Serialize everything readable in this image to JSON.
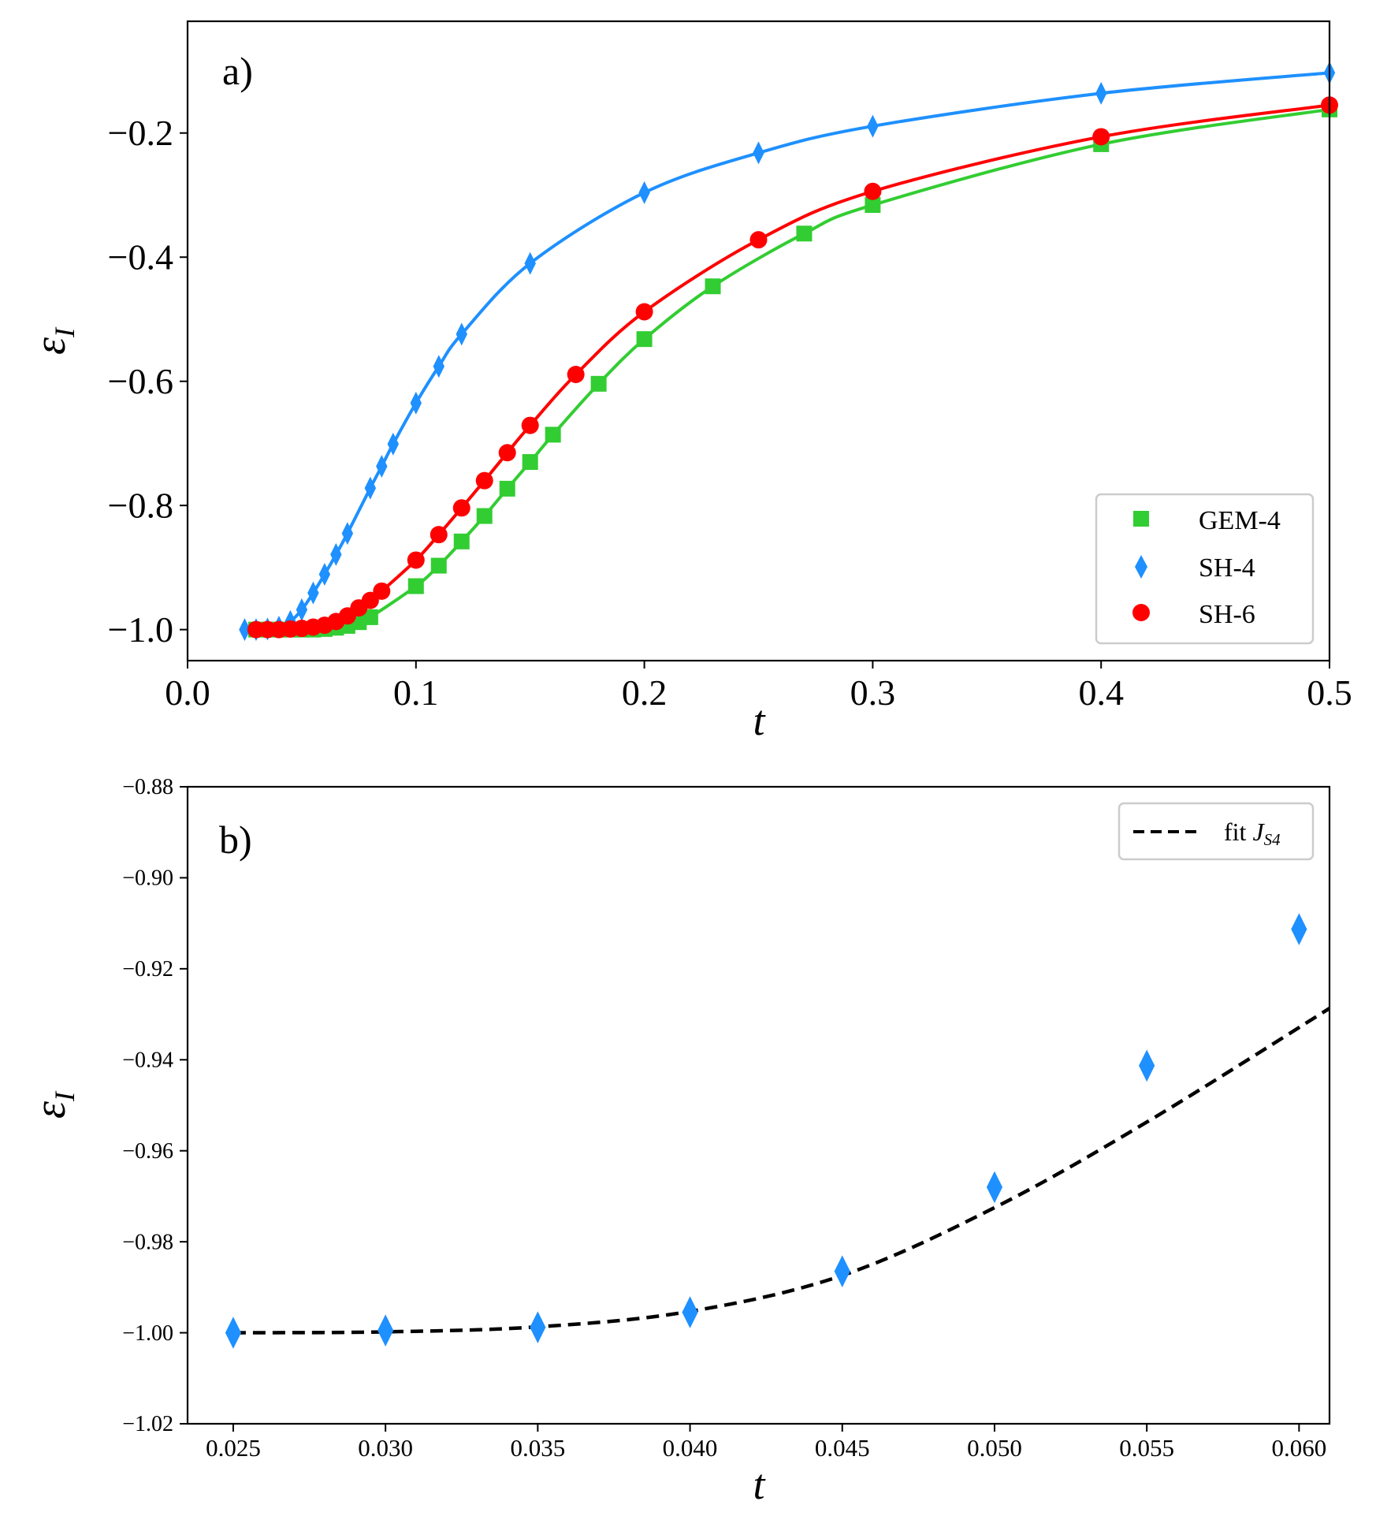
{
  "chart_data": [
    {
      "panel": "a)",
      "type": "line",
      "xlabel": "t",
      "ylabel": "ε_I",
      "xlim": [
        0.0,
        0.5
      ],
      "ylim": [
        -1.05,
        -0.02
      ],
      "xticks": [
        0.0,
        0.1,
        0.2,
        0.3,
        0.4,
        0.5
      ],
      "xtick_labels": [
        "0.0",
        "0.1",
        "0.2",
        "0.3",
        "0.4",
        "0.5"
      ],
      "yticks": [
        -1.0,
        -0.8,
        -0.6,
        -0.4,
        -0.2
      ],
      "ytick_labels": [
        "−1.0",
        "−0.8",
        "−0.6",
        "−0.4",
        "−0.2"
      ],
      "grid": false,
      "legend_position": "lower-right",
      "series": [
        {
          "name": "GEM-4",
          "color": "#32cd32",
          "marker": "square",
          "points": [
            [
              0.03,
              -1.0
            ],
            [
              0.035,
              -1.0
            ],
            [
              0.04,
              -1.0
            ],
            [
              0.045,
              -1.0
            ],
            [
              0.05,
              -1.0
            ],
            [
              0.055,
              -1.0
            ],
            [
              0.06,
              -0.999
            ],
            [
              0.065,
              -0.997
            ],
            [
              0.07,
              -0.994
            ],
            [
              0.075,
              -0.988
            ],
            [
              0.08,
              -0.98
            ],
            [
              0.1,
              -0.93
            ],
            [
              0.11,
              -0.897
            ],
            [
              0.12,
              -0.858
            ],
            [
              0.13,
              -0.817
            ],
            [
              0.14,
              -0.773
            ],
            [
              0.15,
              -0.73
            ],
            [
              0.16,
              -0.686
            ],
            [
              0.18,
              -0.604
            ],
            [
              0.2,
              -0.532
            ],
            [
              0.23,
              -0.447
            ],
            [
              0.27,
              -0.362
            ],
            [
              0.3,
              -0.316
            ],
            [
              0.4,
              -0.218
            ],
            [
              0.5,
              -0.162
            ]
          ]
        },
        {
          "name": "SH-4",
          "color": "#1e90ff",
          "marker": "thin_diamond",
          "points": [
            [
              0.025,
              -1.0
            ],
            [
              0.03,
              -1.0
            ],
            [
              0.035,
              -0.999
            ],
            [
              0.04,
              -0.996
            ],
            [
              0.045,
              -0.987
            ],
            [
              0.05,
              -0.968
            ],
            [
              0.055,
              -0.941
            ],
            [
              0.06,
              -0.911
            ],
            [
              0.065,
              -0.879
            ],
            [
              0.07,
              -0.845
            ],
            [
              0.08,
              -0.772
            ],
            [
              0.085,
              -0.737
            ],
            [
              0.09,
              -0.701
            ],
            [
              0.1,
              -0.635
            ],
            [
              0.11,
              -0.576
            ],
            [
              0.12,
              -0.524
            ],
            [
              0.15,
              -0.41
            ],
            [
              0.2,
              -0.296
            ],
            [
              0.25,
              -0.232
            ],
            [
              0.3,
              -0.189
            ],
            [
              0.4,
              -0.136
            ],
            [
              0.5,
              -0.103
            ]
          ]
        },
        {
          "name": "SH-6",
          "color": "#ff0000",
          "marker": "circle",
          "points": [
            [
              0.03,
              -1.0
            ],
            [
              0.035,
              -1.0
            ],
            [
              0.04,
              -1.0
            ],
            [
              0.045,
              -0.999
            ],
            [
              0.05,
              -0.998
            ],
            [
              0.055,
              -0.996
            ],
            [
              0.06,
              -0.993
            ],
            [
              0.065,
              -0.987
            ],
            [
              0.07,
              -0.978
            ],
            [
              0.075,
              -0.965
            ],
            [
              0.08,
              -0.953
            ],
            [
              0.085,
              -0.938
            ],
            [
              0.1,
              -0.888
            ],
            [
              0.11,
              -0.847
            ],
            [
              0.12,
              -0.804
            ],
            [
              0.13,
              -0.76
            ],
            [
              0.14,
              -0.715
            ],
            [
              0.15,
              -0.671
            ],
            [
              0.17,
              -0.589
            ],
            [
              0.2,
              -0.488
            ],
            [
              0.25,
              -0.372
            ],
            [
              0.3,
              -0.294
            ],
            [
              0.4,
              -0.206
            ],
            [
              0.5,
              -0.155
            ]
          ]
        }
      ]
    },
    {
      "panel": "b)",
      "type": "scatter",
      "xlabel": "t",
      "ylabel": "ε_I",
      "xlim": [
        0.0235,
        0.061
      ],
      "ylim": [
        -1.02,
        -0.88
      ],
      "xticks": [
        0.025,
        0.03,
        0.035,
        0.04,
        0.045,
        0.05,
        0.055,
        0.06
      ],
      "xtick_labels": [
        "0.025",
        "0.030",
        "0.035",
        "0.040",
        "0.045",
        "0.050",
        "0.055",
        "0.060"
      ],
      "yticks": [
        -1.02,
        -1.0,
        -0.98,
        -0.96,
        -0.94,
        -0.92,
        -0.9,
        -0.88
      ],
      "ytick_labels": [
        "−1.02",
        "−1.00",
        "−0.98",
        "−0.96",
        "−0.94",
        "−0.92",
        "−0.90",
        "−0.88"
      ],
      "grid": false,
      "legend_position": "top-right",
      "series": [
        {
          "name": "SH-4",
          "color": "#1e90ff",
          "marker": "thin_diamond",
          "points": [
            [
              0.025,
              -1.0
            ],
            [
              0.03,
              -0.9995
            ],
            [
              0.035,
              -0.9988
            ],
            [
              0.04,
              -0.9955
            ],
            [
              0.045,
              -0.9865
            ],
            [
              0.05,
              -0.968
            ],
            [
              0.055,
              -0.9413
            ],
            [
              0.06,
              -0.9113
            ]
          ]
        },
        {
          "name": "fit J_S4",
          "color": "#000000",
          "style": "dashed",
          "points": [
            [
              0.025,
              -1.0
            ],
            [
              0.03,
              -0.9998
            ],
            [
              0.035,
              -0.9987
            ],
            [
              0.04,
              -0.9953
            ],
            [
              0.045,
              -0.9874
            ],
            [
              0.05,
              -0.9725
            ],
            [
              0.055,
              -0.9537
            ],
            [
              0.061,
              -0.9287
            ]
          ]
        }
      ]
    }
  ],
  "legend_a": [
    {
      "label": "GEM-4",
      "marker": "square",
      "color": "#32cd32"
    },
    {
      "label": "SH-4",
      "marker": "thin_diamond",
      "color": "#1e90ff"
    },
    {
      "label": "SH-6",
      "marker": "circle",
      "color": "#ff0000"
    }
  ],
  "legend_b": {
    "label_prefix": "fit ",
    "label_italic": "J",
    "label_sub": "S4"
  },
  "axis_labels": {
    "ylabel_symbol": "ε",
    "ylabel_sub": "I",
    "xlabel": "t"
  }
}
